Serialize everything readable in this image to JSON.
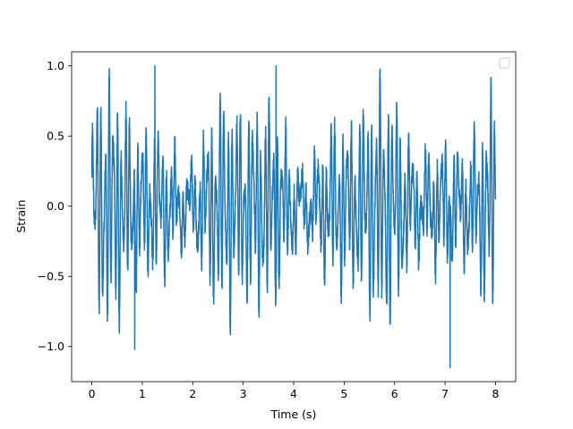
{
  "chart_data": {
    "type": "line",
    "title": "",
    "xlabel": "Time (s)",
    "ylabel": "Strain",
    "xlim": [
      -0.4,
      8.4
    ],
    "ylim": [
      -1.25,
      1.1
    ],
    "xticks": [
      0,
      1,
      2,
      3,
      4,
      5,
      6,
      7,
      8
    ],
    "yticks": [
      -1.0,
      -0.5,
      0.0,
      0.5,
      1.0
    ],
    "xtick_labels": [
      "0",
      "1",
      "2",
      "3",
      "4",
      "5",
      "6",
      "7",
      "8"
    ],
    "ytick_labels": [
      "−1.0",
      "−0.5",
      "0.0",
      "0.5",
      "1.0"
    ],
    "grid": false,
    "legend": {
      "placement": "top-right",
      "entries": []
    },
    "series": [
      {
        "color": "#1f77b4",
        "samples": 4000,
        "x_range": [
          0,
          8
        ],
        "y_range": [
          -1.15,
          1.0
        ],
        "envelope_peaks": [
          {
            "x": 0.85,
            "y": 0.96
          },
          {
            "x": 1.25,
            "y": 1.0
          },
          {
            "x": 3.65,
            "y": 1.0
          },
          {
            "x": 7.1,
            "y": -1.15
          },
          {
            "x": 0.85,
            "y": -1.02
          }
        ]
      }
    ]
  }
}
